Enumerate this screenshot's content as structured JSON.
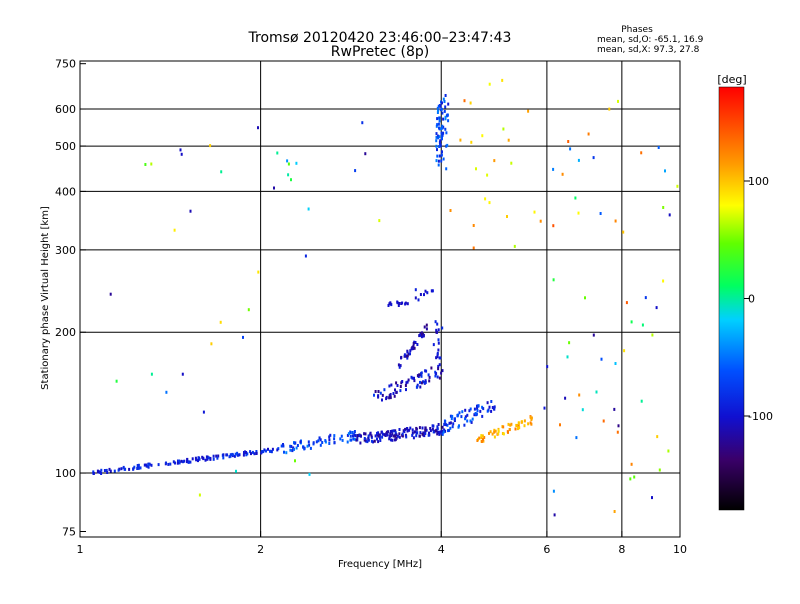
{
  "figure": {
    "title_line1": "Tromsø 20120420 23:46:00–23:47:43",
    "title_line2": "RwPretec (8p)",
    "stats_header": "Phases",
    "stats_line1": "mean, sd,O: -65.1, 16.9",
    "stats_line2": "mean, sd,X: 97.3, 27.8"
  },
  "colorbar": {
    "unit_label": "[deg]",
    "range": [
      -180,
      180
    ],
    "tick_values": [
      100,
      0,
      -100
    ],
    "tick_labels": [
      "100",
      "0",
      "-100"
    ]
  },
  "chart_data": {
    "type": "scatter",
    "title": "Tromsø 20120420 23:46:00–23:47:43",
    "subtitle": "RwPretec (8p)",
    "xlabel": "Frequency [MHz]",
    "ylabel": "Stationary phase Virtual Height [km]",
    "x_scale": "log",
    "y_scale": "log",
    "xlim": [
      1,
      10
    ],
    "ylim": [
      73,
      760
    ],
    "x_ticks": [
      1,
      2,
      4,
      6,
      8,
      10
    ],
    "x_tick_labels": [
      "1",
      "2",
      "4",
      "6",
      "8",
      "10"
    ],
    "y_ticks": [
      75,
      100,
      200,
      300,
      400,
      500,
      600,
      750
    ],
    "y_tick_labels": [
      "75",
      "100",
      "200",
      "300",
      "400",
      "500",
      "600",
      "750"
    ],
    "x_gridlines": [
      2,
      4,
      6,
      8
    ],
    "y_gridlines": [
      100,
      200,
      300,
      400,
      500,
      600
    ],
    "color_variable": "phase [deg]",
    "trace_segments": [
      {
        "x0": 1.05,
        "x1": 2.1,
        "y0": 100,
        "y1": 112,
        "n": 130,
        "spread": 0.018,
        "phase": [
          -110,
          -70
        ]
      },
      {
        "x0": 2.1,
        "x1": 2.9,
        "y0": 112,
        "y1": 120,
        "n": 70,
        "spread": 0.05,
        "phase": [
          -100,
          -40
        ]
      },
      {
        "x0": 2.9,
        "x1": 4.0,
        "y0": 118,
        "y1": 124,
        "n": 140,
        "spread": 0.05,
        "phase": [
          -130,
          -80
        ]
      },
      {
        "x0": 3.1,
        "x1": 4.0,
        "y0": 145,
        "y1": 165,
        "n": 70,
        "spread": 0.07,
        "phase": [
          -130,
          -70
        ]
      },
      {
        "x0": 4.0,
        "x1": 4.9,
        "y0": 125,
        "y1": 140,
        "n": 70,
        "spread": 0.07,
        "phase": [
          -110,
          -50
        ]
      },
      {
        "x0": 4.6,
        "x1": 5.7,
        "y0": 118,
        "y1": 130,
        "n": 55,
        "spread": 0.04,
        "phase": [
          90,
          130
        ]
      },
      {
        "x0": 3.4,
        "x1": 3.8,
        "y0": 170,
        "y1": 205,
        "n": 40,
        "spread": 0.04,
        "phase": [
          -130,
          -90
        ]
      },
      {
        "x0": 3.9,
        "x1": 4.0,
        "y0": 160,
        "y1": 210,
        "n": 20,
        "spread": 0.04,
        "phase": [
          -120,
          -80
        ]
      },
      {
        "x0": 3.2,
        "x1": 3.6,
        "y0": 228,
        "y1": 232,
        "n": 14,
        "spread": 0.01,
        "phase": [
          -110,
          -90
        ]
      },
      {
        "x0": 3.6,
        "x1": 3.9,
        "y0": 236,
        "y1": 246,
        "n": 10,
        "spread": 0.02,
        "phase": [
          -110,
          -80
        ]
      },
      {
        "x0": 3.93,
        "x1": 4.08,
        "y0": 460,
        "y1": 640,
        "n": 70,
        "spread": 0.06,
        "phase": [
          -100,
          -40
        ]
      },
      {
        "x0": 4.2,
        "x1": 5.7,
        "y0": 300,
        "y1": 620,
        "n": 22,
        "spread": 0.25,
        "phase": [
          60,
          140
        ]
      },
      {
        "x0": 6.0,
        "x1": 9.8,
        "y0": 80,
        "y1": 620,
        "n": 60,
        "spread": 0.4,
        "phase": [
          -140,
          150
        ]
      },
      {
        "x0": 1.02,
        "x1": 3.5,
        "y0": 78,
        "y1": 560,
        "n": 30,
        "spread": 0.4,
        "phase": [
          -130,
          100
        ]
      },
      {
        "x0": 1.45,
        "x1": 1.48,
        "y0": 430,
        "y1": 500,
        "n": 2,
        "spread": 0.01,
        "phase": [
          -110,
          -100
        ]
      },
      {
        "x0": 2.2,
        "x1": 2.3,
        "y0": 410,
        "y1": 490,
        "n": 5,
        "spread": 0.05,
        "phase": [
          -90,
          60
        ]
      }
    ],
    "random_seed": 20120420
  }
}
